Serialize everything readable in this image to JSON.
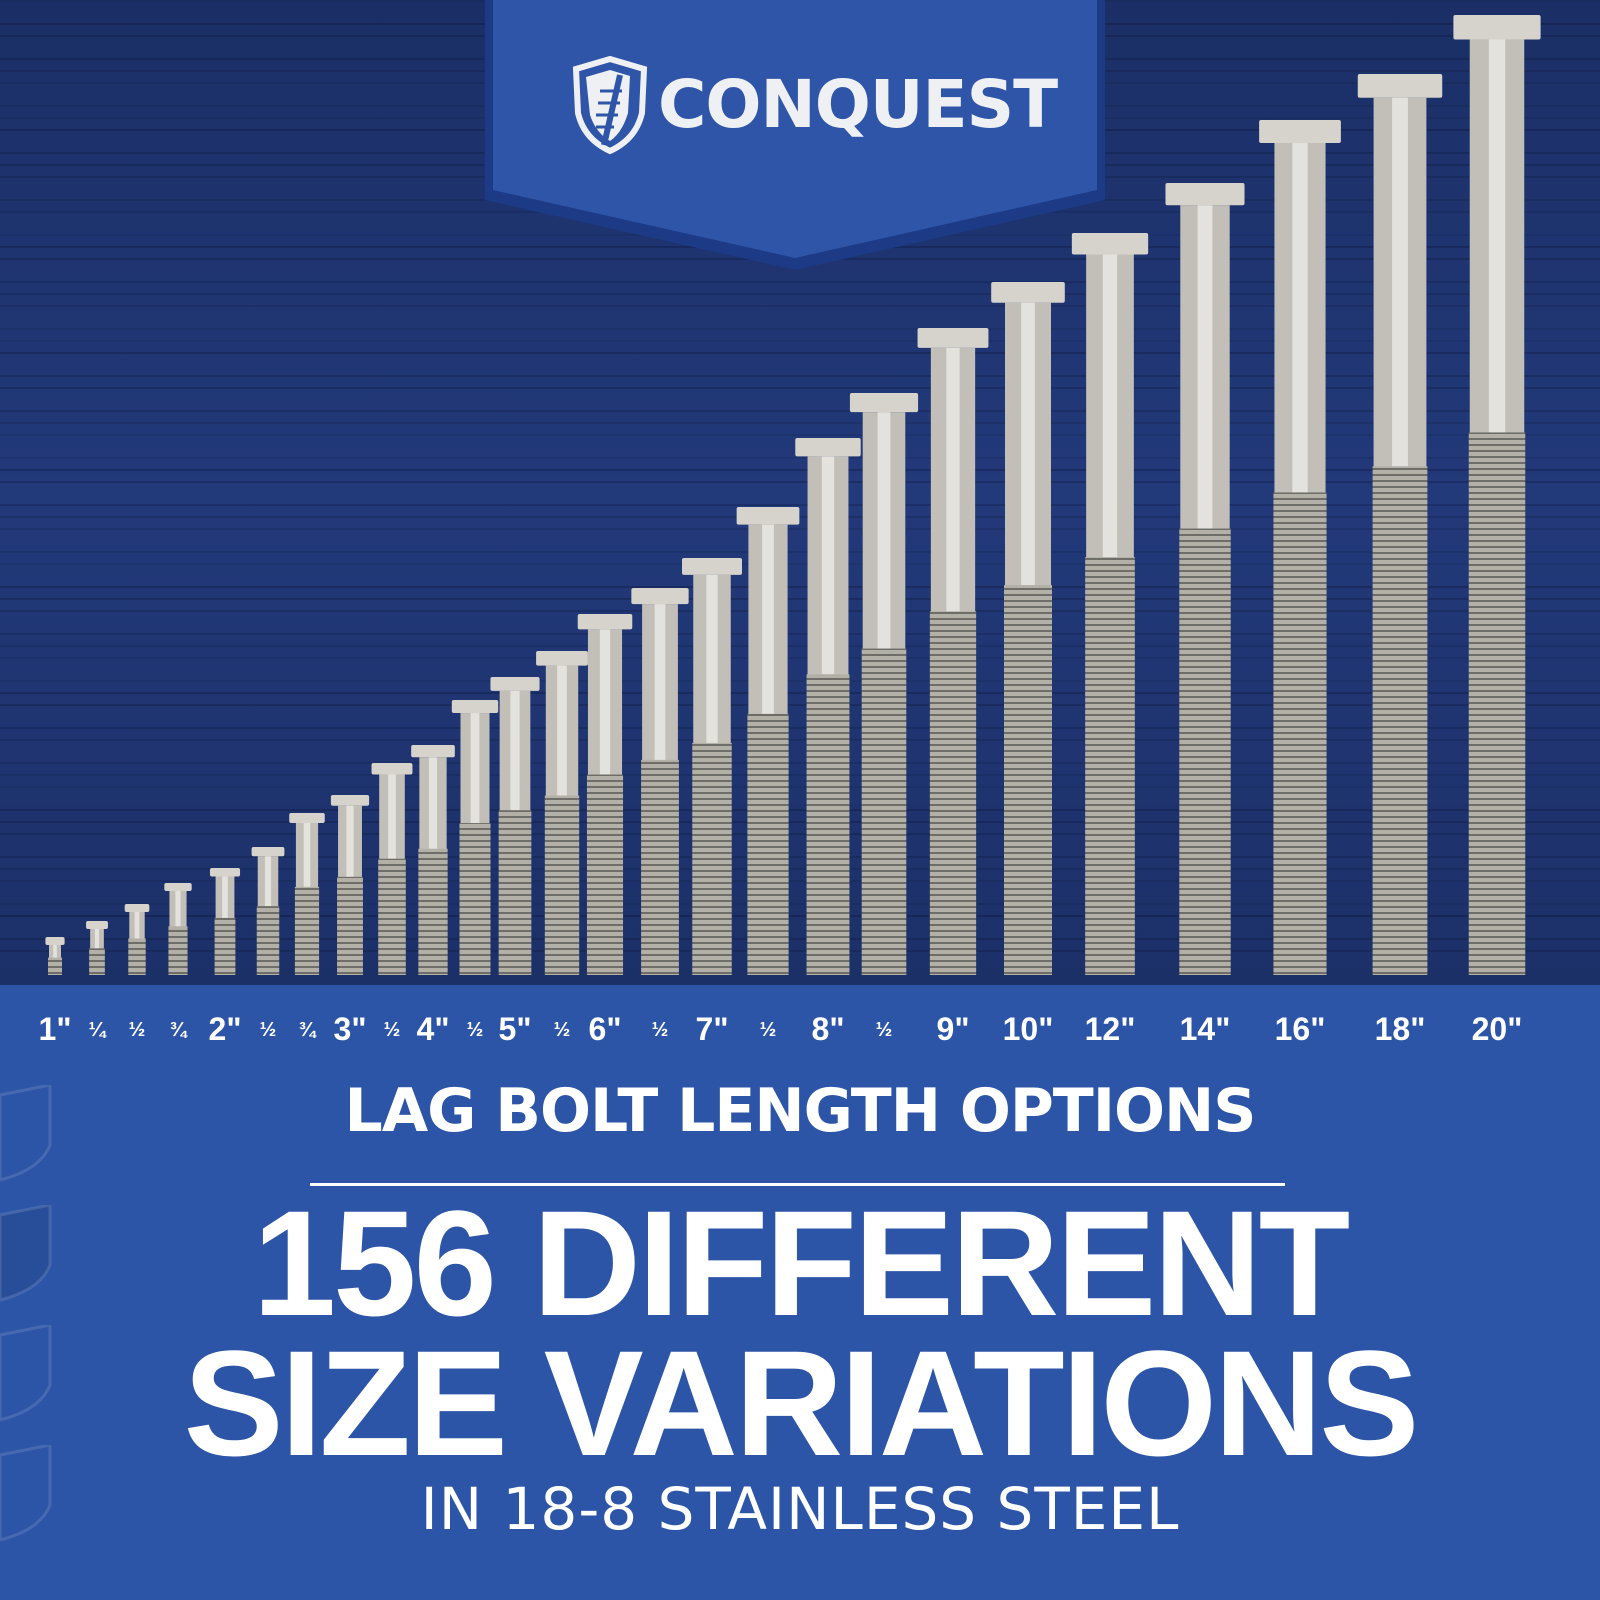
{
  "brand": {
    "name": "CONQUEST",
    "logo_icon": "shield-screw-icon"
  },
  "colors": {
    "wood": "#1f3570",
    "band": "#2d55a7",
    "banner": "#2e55a8",
    "text": "#ffffff",
    "steel": "#c9c6bf"
  },
  "length_labels": [
    {
      "text": "1\"",
      "major": true
    },
    {
      "text": "¼",
      "major": false
    },
    {
      "text": "½",
      "major": false
    },
    {
      "text": "¾",
      "major": false
    },
    {
      "text": "2\"",
      "major": true
    },
    {
      "text": "½",
      "major": false
    },
    {
      "text": "¾",
      "major": false
    },
    {
      "text": "3\"",
      "major": true
    },
    {
      "text": "½",
      "major": false
    },
    {
      "text": "4\"",
      "major": true
    },
    {
      "text": "½",
      "major": false
    },
    {
      "text": "5\"",
      "major": true
    },
    {
      "text": "½",
      "major": false
    },
    {
      "text": "6\"",
      "major": true
    },
    {
      "text": "½",
      "major": false
    },
    {
      "text": "7\"",
      "major": true
    },
    {
      "text": "½",
      "major": false
    },
    {
      "text": "8\"",
      "major": true
    },
    {
      "text": "½",
      "major": false
    },
    {
      "text": "9\"",
      "major": true
    },
    {
      "text": "10\"",
      "major": true
    },
    {
      "text": "12\"",
      "major": true
    },
    {
      "text": "14\"",
      "major": true
    },
    {
      "text": "16\"",
      "major": true
    },
    {
      "text": "18\"",
      "major": true
    },
    {
      "text": "20\"",
      "major": true
    }
  ],
  "subtitle": "LAG BOLT LENGTH OPTIONS",
  "headline_line1": "156 DIFFERENT",
  "headline_line2": "SIZE VARIATIONS",
  "footer": "IN 18-8 STAINLESS STEEL"
}
